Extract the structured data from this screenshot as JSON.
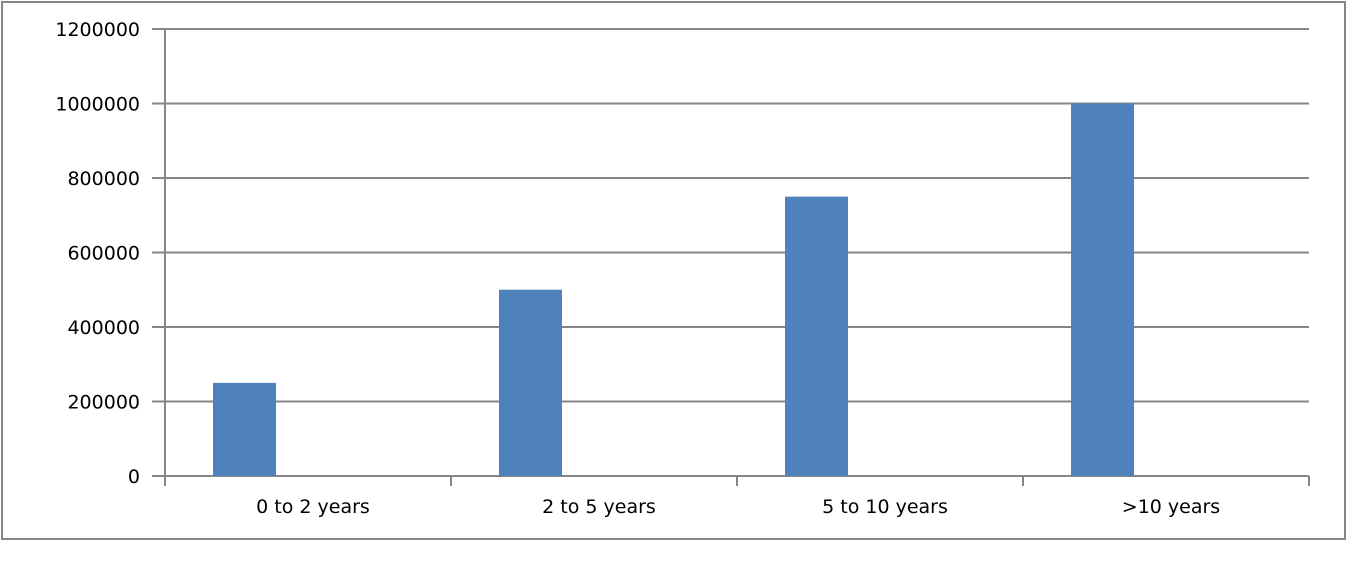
{
  "chart_data": {
    "type": "bar",
    "title": "",
    "xlabel": "",
    "ylabel": "",
    "categories": [
      "0 to 2 years",
      "2 to 5 years",
      "5 to 10 years",
      ">10 years"
    ],
    "values": [
      250000,
      500000,
      750000,
      1000000
    ],
    "ylim": [
      0,
      1200000
    ],
    "yticks": [
      0,
      200000,
      400000,
      600000,
      800000,
      1000000,
      1200000
    ],
    "ytick_labels": [
      "0",
      "200000",
      "400000",
      "600000",
      "800000",
      "1000000",
      "1200000"
    ],
    "grid": true,
    "legend": "none",
    "colors": {
      "bar": "#4f81bd",
      "grid": "#868686",
      "frame": "#868686"
    }
  }
}
